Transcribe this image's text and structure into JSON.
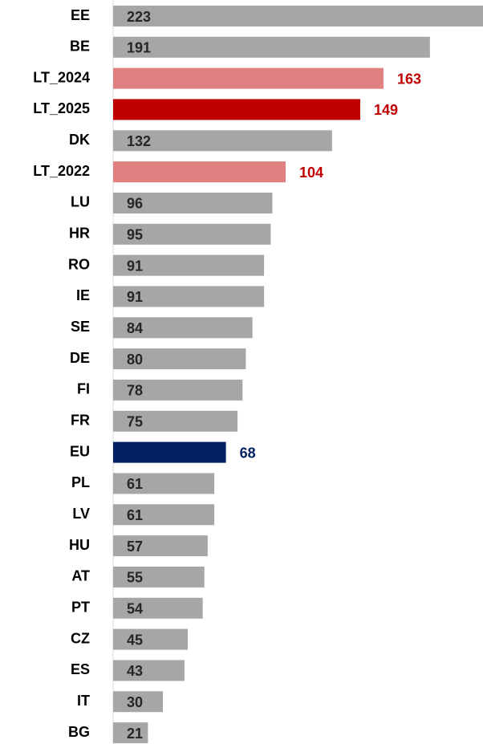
{
  "chart_data": {
    "type": "hbar",
    "categories": [
      "EE",
      "BE",
      "LT_2024",
      "LT_2025",
      "DK",
      "LT_2022",
      "LU",
      "HR",
      "RO",
      "IE",
      "SE",
      "DE",
      "FI",
      "FR",
      "EU",
      "PL",
      "LV",
      "HU",
      "AT",
      "PT",
      "CZ",
      "ES",
      "IT",
      "BG"
    ],
    "values": [
      223,
      191,
      163,
      149,
      132,
      104,
      96,
      95,
      91,
      91,
      84,
      80,
      78,
      75,
      68,
      61,
      61,
      57,
      55,
      54,
      45,
      43,
      30,
      21
    ],
    "colors": [
      "#a6a6a6",
      "#a6a6a6",
      "#e08080",
      "#c00000",
      "#a6a6a6",
      "#e08080",
      "#a6a6a6",
      "#a6a6a6",
      "#a6a6a6",
      "#a6a6a6",
      "#a6a6a6",
      "#a6a6a6",
      "#a6a6a6",
      "#a6a6a6",
      "#002060",
      "#a6a6a6",
      "#a6a6a6",
      "#a6a6a6",
      "#a6a6a6",
      "#a6a6a6",
      "#a6a6a6",
      "#a6a6a6",
      "#a6a6a6",
      "#a6a6a6"
    ],
    "value_label_colors": [
      "#262626",
      "#262626",
      "#c00000",
      "#c00000",
      "#262626",
      "#c00000",
      "#262626",
      "#262626",
      "#262626",
      "#262626",
      "#262626",
      "#262626",
      "#262626",
      "#262626",
      "#002060",
      "#262626",
      "#262626",
      "#262626",
      "#262626",
      "#262626",
      "#262626",
      "#262626",
      "#262626",
      "#262626"
    ],
    "value_label_positions": [
      "inside",
      "inside",
      "outside",
      "outside",
      "inside",
      "outside",
      "inside",
      "inside",
      "inside",
      "inside",
      "inside",
      "inside",
      "inside",
      "inside",
      "outside",
      "inside",
      "inside",
      "inside",
      "inside",
      "inside",
      "inside",
      "inside",
      "inside",
      "inside"
    ]
  }
}
